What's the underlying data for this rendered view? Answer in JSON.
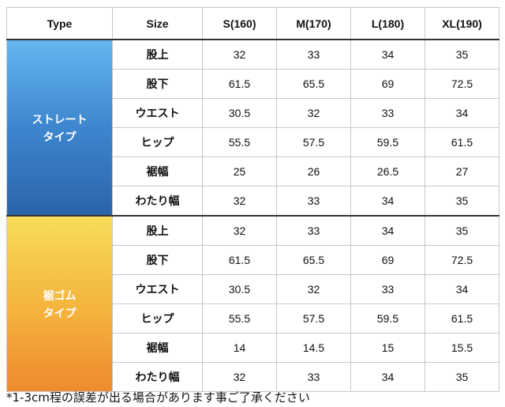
{
  "header": {
    "type": "Type",
    "size": "Size",
    "sizes": [
      "S(160)",
      "M(170)",
      "L(180)",
      "XL(190)"
    ]
  },
  "groups": [
    {
      "type_line1": "ストレート",
      "type_line2": "タイプ",
      "rows": [
        {
          "label": "股上",
          "values": [
            "32",
            "33",
            "34",
            "35"
          ]
        },
        {
          "label": "股下",
          "values": [
            "61.5",
            "65.5",
            "69",
            "72.5"
          ]
        },
        {
          "label": "ウエスト",
          "values": [
            "30.5",
            "32",
            "33",
            "34"
          ]
        },
        {
          "label": "ヒップ",
          "values": [
            "55.5",
            "57.5",
            "59.5",
            "61.5"
          ]
        },
        {
          "label": "裾幅",
          "values": [
            "25",
            "26",
            "26.5",
            "27"
          ]
        },
        {
          "label": "わたり幅",
          "values": [
            "32",
            "33",
            "34",
            "35"
          ]
        }
      ]
    },
    {
      "type_line1": "裾ゴム",
      "type_line2": "タイプ",
      "rows": [
        {
          "label": "股上",
          "values": [
            "32",
            "33",
            "34",
            "35"
          ]
        },
        {
          "label": "股下",
          "values": [
            "61.5",
            "65.5",
            "69",
            "72.5"
          ]
        },
        {
          "label": "ウエスト",
          "values": [
            "30.5",
            "32",
            "33",
            "34"
          ]
        },
        {
          "label": "ヒップ",
          "values": [
            "55.5",
            "57.5",
            "59.5",
            "61.5"
          ]
        },
        {
          "label": "裾幅",
          "values": [
            "14",
            "14.5",
            "15",
            "15.5"
          ]
        },
        {
          "label": "わたり幅",
          "values": [
            "32",
            "33",
            "34",
            "35"
          ]
        }
      ]
    }
  ],
  "note": "*1-3cm程の誤差が出る場合があります事ご了承ください",
  "colors": {
    "straight_gradient": [
      "#66b6f0",
      "#2b64a8"
    ],
    "elastic_gradient": [
      "#f7dc5a",
      "#ef8a2e"
    ]
  }
}
